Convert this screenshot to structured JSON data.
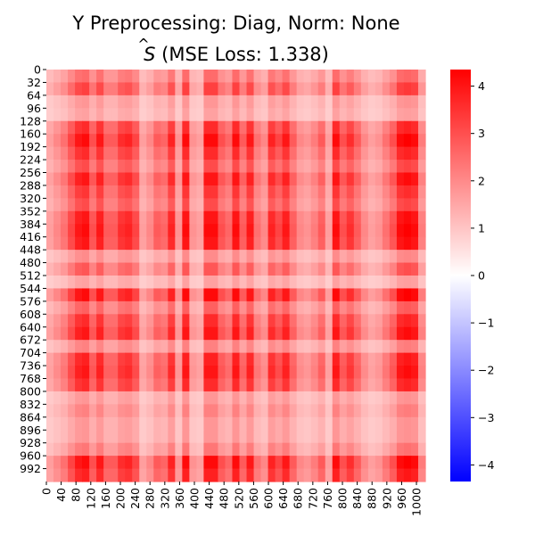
{
  "chart_data": {
    "type": "heatmap",
    "title_line1": "Y Preprocessing: Diag, Norm: None",
    "title_line2_prefix": "S",
    "title_line2_suffix": " (MSE Loss: 1.338)",
    "colormap": "bwr",
    "colors": {
      "low": "#0000ff",
      "mid": "#ffffff",
      "high": "#ff0000"
    },
    "vmin": -4.35,
    "vmax": 4.35,
    "colorbar_ticks": [
      4,
      3,
      2,
      1,
      0,
      -1,
      -2,
      -3,
      -4
    ],
    "colorbar_tick_labels": [
      "4",
      "3",
      "2",
      "1",
      "0",
      "−1",
      "−2",
      "−3",
      "−4"
    ],
    "matrix_size": 1024,
    "y_tick_labels": [
      "0",
      "32",
      "64",
      "96",
      "128",
      "160",
      "192",
      "224",
      "256",
      "288",
      "320",
      "352",
      "384",
      "416",
      "448",
      "480",
      "512",
      "544",
      "576",
      "608",
      "640",
      "672",
      "704",
      "736",
      "768",
      "800",
      "832",
      "864",
      "896",
      "928",
      "960",
      "992"
    ],
    "x_tick_labels": [
      "0",
      "40",
      "80",
      "120",
      "160",
      "200",
      "240",
      "280",
      "320",
      "360",
      "400",
      "440",
      "480",
      "520",
      "560",
      "600",
      "640",
      "680",
      "720",
      "760",
      "800",
      "840",
      "880",
      "920",
      "960",
      "1000"
    ],
    "x_tick_values": [
      0,
      40,
      80,
      120,
      160,
      200,
      240,
      280,
      320,
      360,
      400,
      440,
      480,
      520,
      560,
      600,
      640,
      680,
      720,
      760,
      800,
      840,
      880,
      920,
      960,
      1000
    ],
    "y_tick_values": [
      0,
      32,
      64,
      96,
      128,
      160,
      192,
      224,
      256,
      288,
      320,
      352,
      384,
      416,
      448,
      480,
      512,
      544,
      576,
      608,
      640,
      672,
      704,
      736,
      768,
      800,
      832,
      864,
      896,
      928,
      960,
      992
    ],
    "row_profile": [
      0.55,
      0.75,
      0.35,
      0.3,
      0.85,
      1.0,
      0.85,
      0.7,
      0.95,
      0.8,
      0.7,
      0.95,
      1.0,
      0.95,
      0.4,
      0.65,
      0.3,
      1.0,
      0.6,
      0.85,
      0.95,
      0.45,
      0.9,
      0.95,
      0.85,
      0.35,
      0.45,
      0.35,
      0.35,
      0.5,
      1.0,
      0.9
    ],
    "col_profile": [
      0.3,
      0.4,
      0.5,
      0.7,
      0.9,
      0.95,
      0.65,
      0.9,
      0.6,
      0.6,
      0.8,
      0.85,
      0.7,
      0.3,
      0.4,
      0.6,
      0.55,
      0.85,
      0.35,
      0.95,
      0.35,
      0.3,
      0.95,
      0.95,
      0.65,
      0.55,
      0.95,
      0.6,
      0.9,
      0.5,
      0.4,
      0.85,
      0.7,
      0.9,
      0.6,
      0.4,
      0.35,
      0.45,
      0.6,
      0.3,
      0.95,
      0.65,
      0.8,
      0.6,
      0.4,
      0.3,
      0.35,
      0.5,
      0.65,
      0.95,
      1.0,
      0.95,
      0.45
    ],
    "value_base": 0.5,
    "value_scale": 4.3
  }
}
